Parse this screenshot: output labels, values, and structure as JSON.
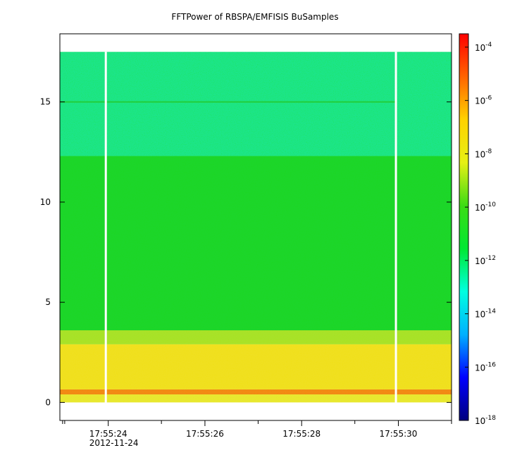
{
  "chart_data": {
    "type": "heatmap",
    "title": "FFTPower of RBSPA/EMFISIS  BuSamples",
    "xlabel": "",
    "ylabel": "",
    "x_ticks": [
      {
        "time": "17:55:24",
        "date": "2012-11-24",
        "pos": 23.9
      },
      {
        "time": "17:55:26",
        "date": "",
        "pos": 25.9
      },
      {
        "time": "17:55:28",
        "date": "",
        "pos": 27.9
      },
      {
        "time": "17:55:30",
        "date": "",
        "pos": 29.9
      }
    ],
    "x_minor_ticks": [
      23,
      25,
      27,
      29,
      31
    ],
    "xlim": [
      22.9,
      31.0
    ],
    "y_ticks": [
      0,
      5,
      10,
      15
    ],
    "ylim": [
      -0.9,
      18.4
    ],
    "data_extent_y": [
      0,
      17.5
    ],
    "gap_times": [
      23.85,
      29.85
    ],
    "bands": [
      {
        "y_from": 0,
        "y_to": 0.4,
        "level": "1e-8",
        "color": "#e8e832"
      },
      {
        "y_from": 0.4,
        "y_to": 0.65,
        "level": "1e-7",
        "color": "#f28a14"
      },
      {
        "y_from": 0.65,
        "y_to": 2.9,
        "level": "1e-8",
        "color": "#f0e020"
      },
      {
        "y_from": 2.9,
        "y_to": 3.6,
        "level": "1e-9",
        "color": "#a8e22a"
      },
      {
        "y_from": 3.6,
        "y_to": 12.3,
        "level": "1e-10",
        "color": "#1fd62c"
      },
      {
        "y_from": 12.3,
        "y_to": 17.5,
        "level": "1e-12",
        "color": "#1fe58a"
      }
    ],
    "line_feature": {
      "y": 15.0,
      "color": "#22cc33"
    },
    "colorbar": {
      "scale": "log",
      "range": [
        -18,
        -3.5
      ],
      "ticks": [
        -4,
        -6,
        -8,
        -10,
        -12,
        -14,
        -16,
        -18
      ],
      "colors": [
        "#00007f",
        "#0000ff",
        "#00b0ff",
        "#00ffe0",
        "#00e832",
        "#3cdc14",
        "#e6f014",
        "#ffd200",
        "#ff6400",
        "#ff0000"
      ]
    }
  }
}
